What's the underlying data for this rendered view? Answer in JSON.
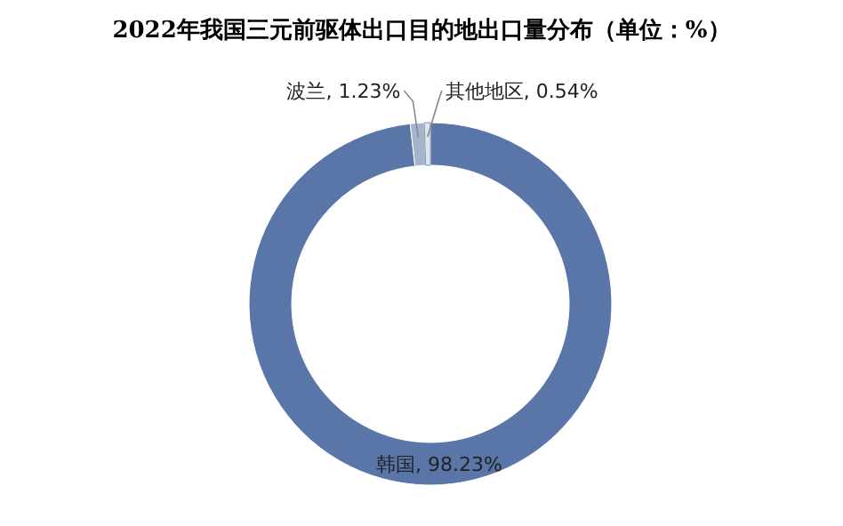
{
  "chart_data": {
    "type": "donut",
    "title": "2022年我国三元前驱体出口目的地出口量分布（单位：%）",
    "categories": [
      "韩国",
      "波兰",
      "其他地区"
    ],
    "values": [
      98.23,
      1.23,
      0.54
    ],
    "colors": [
      "#5a76a8",
      "#a3b4cc",
      "#dfe5ee"
    ],
    "value_labels": [
      "98.23%",
      "1.23%",
      "0.54%"
    ],
    "legend": false
  }
}
